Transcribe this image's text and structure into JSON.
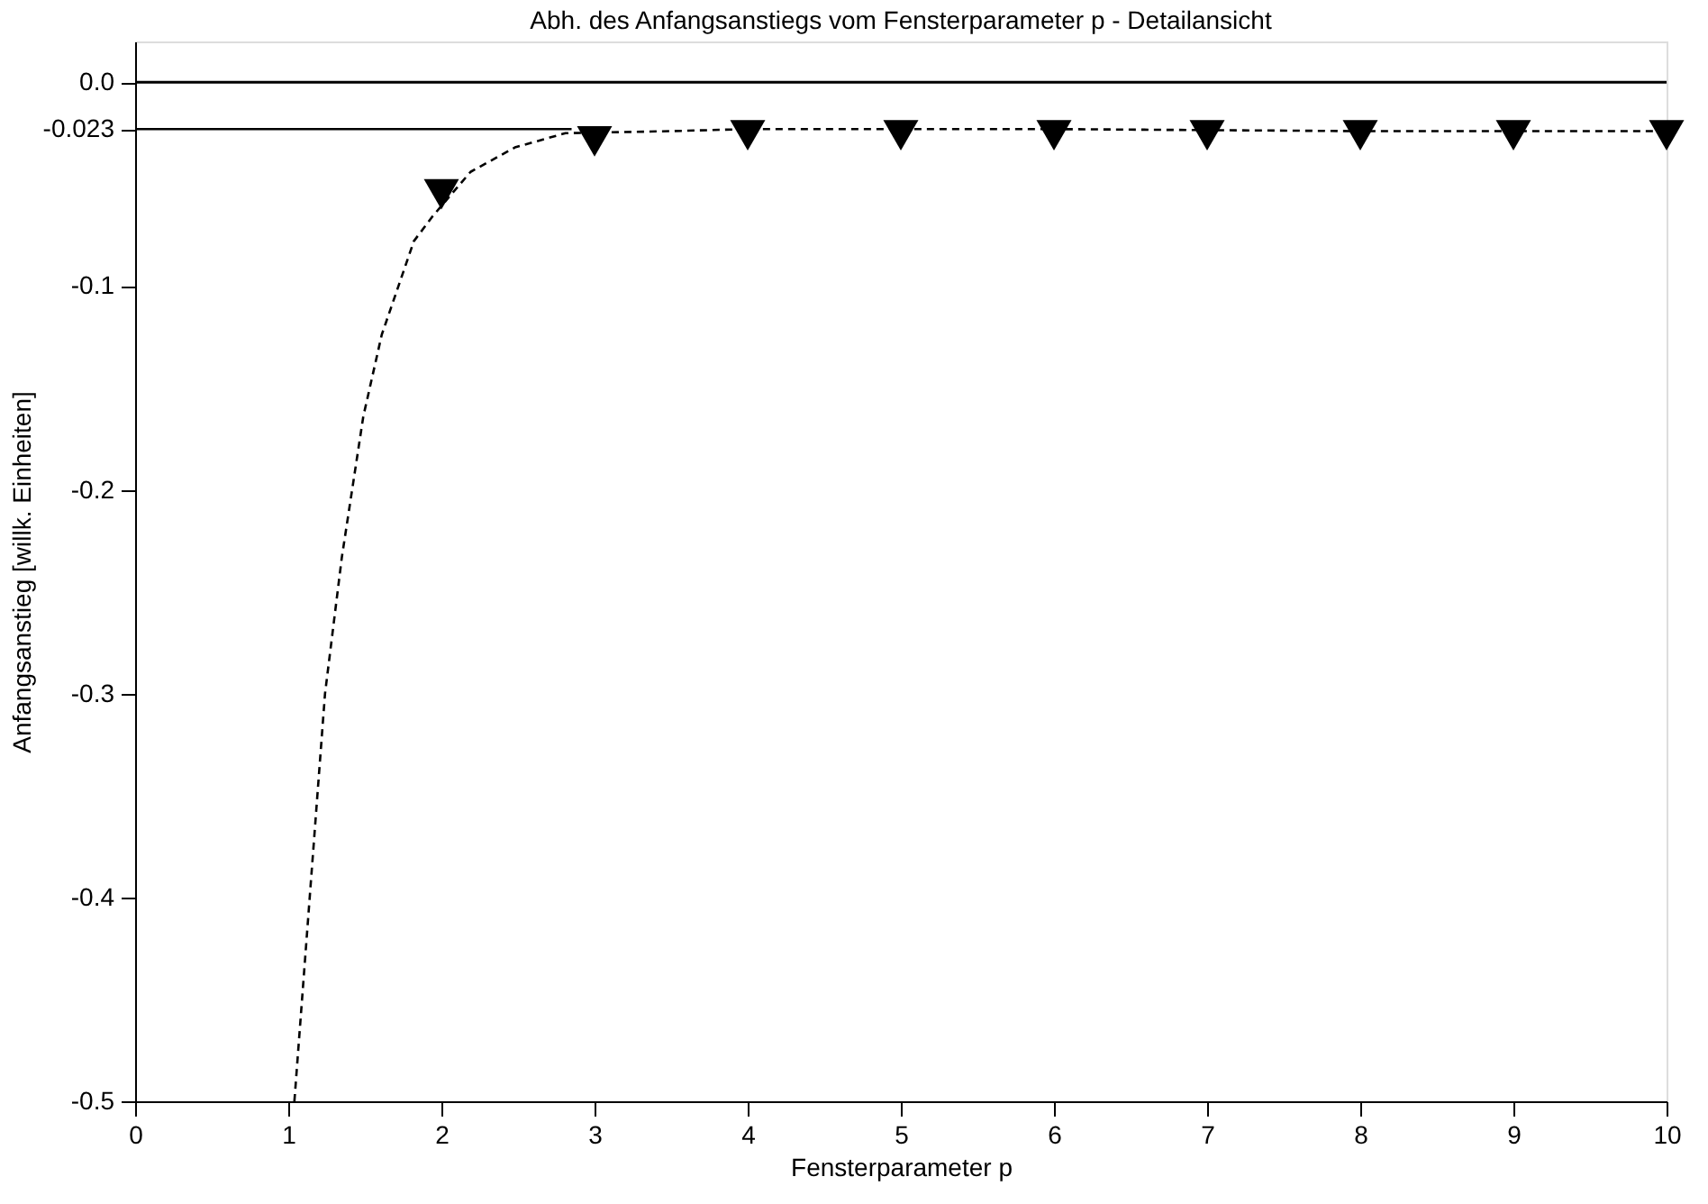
{
  "chart_data": {
    "type": "scatter",
    "title": "Abh. des Anfangsanstiegs vom Fensterparameter p - Detailansicht",
    "xlabel": "Fensterparameter p",
    "ylabel": "Anfangsanstieg [willk. Einheiten]",
    "x": [
      2,
      3,
      4,
      5,
      6,
      7,
      8,
      9,
      10
    ],
    "series": [
      {
        "marker": "triangle",
        "color": "#000000",
        "values": [
          -0.055,
          -0.029,
          -0.026,
          -0.026,
          -0.026,
          -0.026,
          -0.026,
          -0.026,
          -0.026
        ]
      },
      {
        "type": "line",
        "line_style": "dashed",
        "color": "#000000",
        "x": [
          1.04,
          1.14,
          1.24,
          1.35,
          1.49,
          1.61,
          1.82,
          1.94,
          2.19,
          2.48,
          2.81,
          3.5,
          4.0,
          6.0,
          8.0,
          10.0
        ],
        "values": [
          -0.5,
          -0.4,
          -0.3,
          -0.233,
          -0.164,
          -0.124,
          -0.078,
          -0.066,
          -0.044,
          -0.032,
          -0.025,
          -0.024,
          -0.023,
          -0.023,
          -0.024,
          -0.024
        ]
      },
      {
        "type": "line",
        "line_style": "solid",
        "color": "#000000",
        "x": [
          0,
          2.85
        ],
        "values": [
          -0.023,
          -0.023
        ]
      }
    ],
    "ref_lines": [
      {
        "axis": "y",
        "value": 0,
        "color": "#000000"
      }
    ],
    "xlim": [
      0,
      10
    ],
    "ylim": [
      -0.5,
      0.02
    ],
    "xticks": [
      0,
      1,
      2,
      3,
      4,
      5,
      6,
      7,
      8,
      9,
      10
    ],
    "yticks": [
      {
        "value": 0,
        "label": "0.0"
      },
      -0.023,
      -0.1,
      -0.2,
      -0.3,
      -0.4,
      -0.5
    ],
    "grid": false
  }
}
